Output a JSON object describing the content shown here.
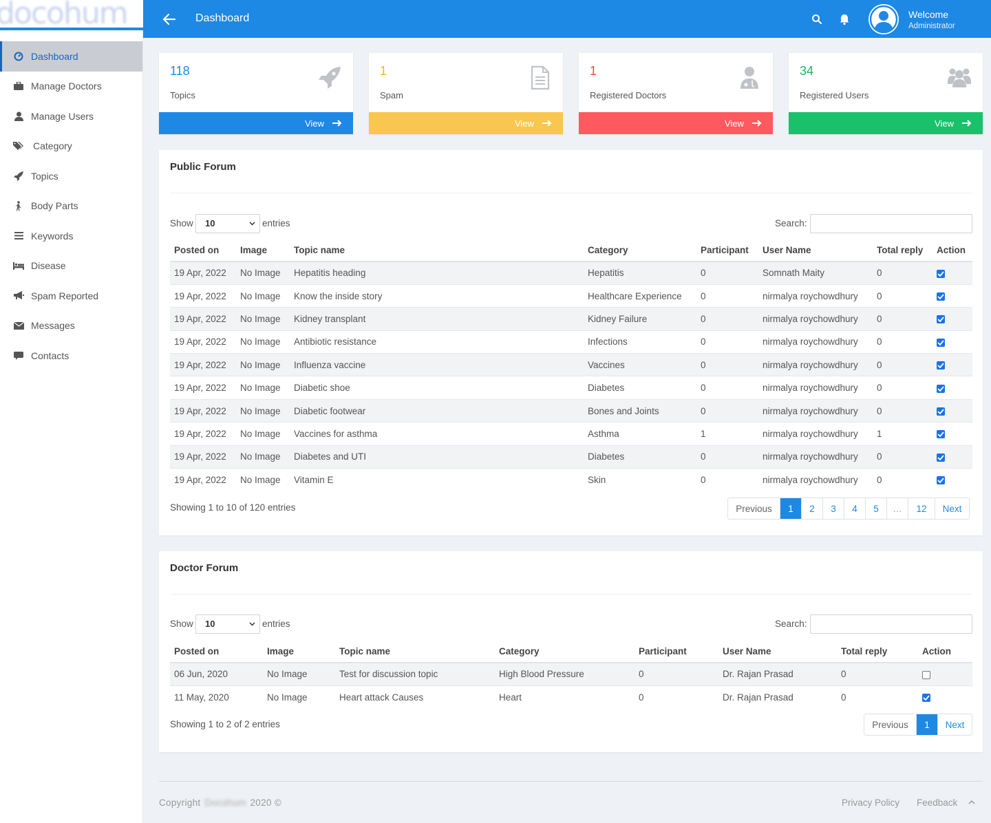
{
  "logo": {
    "text": "docohum"
  },
  "sidebar": {
    "items": [
      {
        "label": "Dashboard",
        "icon": "dashboard-icon",
        "active": true
      },
      {
        "label": "Manage Doctors",
        "icon": "briefcase-icon"
      },
      {
        "label": "Manage Users",
        "icon": "user-icon"
      },
      {
        "label": "Category",
        "icon": "tags-icon"
      },
      {
        "label": "Topics",
        "icon": "rocket-icon"
      },
      {
        "label": "Body Parts",
        "icon": "walking-icon"
      },
      {
        "label": "Keywords",
        "icon": "list-icon"
      },
      {
        "label": "Disease",
        "icon": "bed-icon"
      },
      {
        "label": "Spam Reported",
        "icon": "bullhorn-icon"
      },
      {
        "label": "Messages",
        "icon": "envelope-icon"
      },
      {
        "label": "Contacts",
        "icon": "comment-icon"
      }
    ]
  },
  "header": {
    "title": "Dashboard",
    "welcome": "Welcome",
    "role": "Administrator"
  },
  "cards": [
    {
      "value": "118",
      "label": "Topics",
      "link": "View",
      "color": "#1e88e5",
      "icon": "rocket-icon"
    },
    {
      "value": "1",
      "label": "Spam",
      "link": "View",
      "color": "#f9c74f",
      "icon": "document-icon"
    },
    {
      "value": "1",
      "label": "Registered Doctors",
      "link": "View",
      "color": "#ff5a5f",
      "icon": "doctor-icon"
    },
    {
      "value": "34",
      "label": "Registered Users",
      "link": "View",
      "color": "#19c16b",
      "icon": "users-icon"
    }
  ],
  "public_forum": {
    "title": "Public Forum",
    "show_label": "Show",
    "entries_value": "10",
    "entries_label": "entries",
    "search_label": "Search:",
    "columns": [
      "Posted on",
      "Image",
      "Topic name",
      "Category",
      "Participant",
      "User Name",
      "Total reply",
      "Action"
    ],
    "rows": [
      [
        "19 Apr, 2022",
        "No Image",
        "Hepatitis heading",
        "Hepatitis",
        "0",
        "Somnath Maity",
        "0",
        true
      ],
      [
        "19 Apr, 2022",
        "No Image",
        "Know the inside story",
        "Healthcare Experience",
        "0",
        "nirmalya roychowdhury",
        "0",
        true
      ],
      [
        "19 Apr, 2022",
        "No Image",
        "Kidney transplant",
        "Kidney Failure",
        "0",
        "nirmalya roychowdhury",
        "0",
        true
      ],
      [
        "19 Apr, 2022",
        "No Image",
        "Antibiotic resistance",
        "Infections",
        "0",
        "nirmalya roychowdhury",
        "0",
        true
      ],
      [
        "19 Apr, 2022",
        "No Image",
        "Influenza vaccine",
        "Vaccines",
        "0",
        "nirmalya roychowdhury",
        "0",
        true
      ],
      [
        "19 Apr, 2022",
        "No Image",
        "Diabetic shoe",
        "Diabetes",
        "0",
        "nirmalya roychowdhury",
        "0",
        true
      ],
      [
        "19 Apr, 2022",
        "No Image",
        "Diabetic footwear",
        "Bones and Joints",
        "0",
        "nirmalya roychowdhury",
        "0",
        true
      ],
      [
        "19 Apr, 2022",
        "No Image",
        "Vaccines for asthma",
        "Asthma",
        "1",
        "nirmalya roychowdhury",
        "1",
        true
      ],
      [
        "19 Apr, 2022",
        "No Image",
        "Diabetes and UTI",
        "Diabetes",
        "0",
        "nirmalya roychowdhury",
        "0",
        true
      ],
      [
        "19 Apr, 2022",
        "No Image",
        "Vitamin E",
        "Skin",
        "0",
        "nirmalya roychowdhury",
        "0",
        true
      ]
    ],
    "showing": "Showing 1 to 10 of 120 entries",
    "pagination": [
      "Previous",
      "1",
      "2",
      "3",
      "4",
      "5",
      "…",
      "12",
      "Next"
    ],
    "active_page": "1"
  },
  "doctor_forum": {
    "title": "Doctor Forum",
    "show_label": "Show",
    "entries_value": "10",
    "entries_label": "entries",
    "search_label": "Search:",
    "columns": [
      "Posted on",
      "Image",
      "Topic name",
      "Category",
      "Participant",
      "User Name",
      "Total reply",
      "Action"
    ],
    "rows": [
      [
        "06 Jun, 2020",
        "No Image",
        "Test for discussion topic",
        "High Blood Pressure",
        "0",
        "Dr. Rajan Prasad",
        "0",
        false
      ],
      [
        "11 May, 2020",
        "No Image",
        "Heart attack Causes",
        "Heart",
        "0",
        "Dr. Rajan Prasad",
        "0",
        true
      ]
    ],
    "showing": "Showing 1 to 2 of 2 entries",
    "pagination": [
      "Previous",
      "1",
      "Next"
    ],
    "active_page": "1"
  },
  "footer": {
    "copyright_prefix": "Copyright",
    "brand": "Docohum",
    "copyright_suffix": "2020 ©",
    "privacy": "Privacy Policy",
    "feedback": "Feedback"
  }
}
